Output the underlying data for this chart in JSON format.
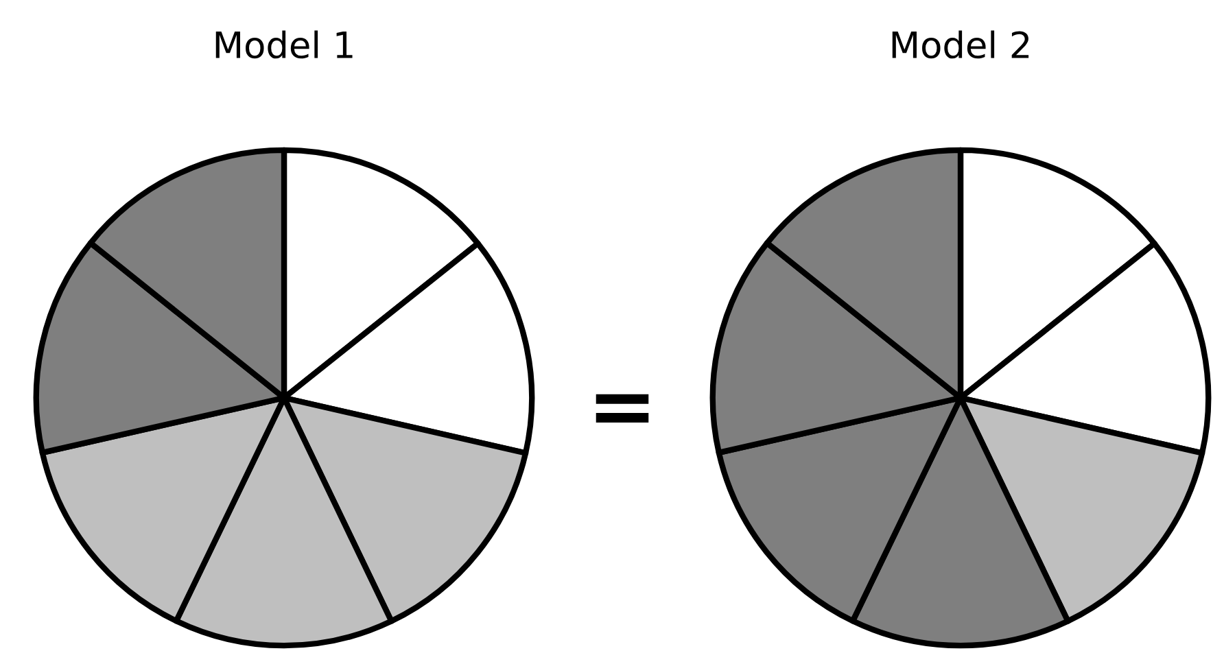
{
  "chart_data": [
    {
      "type": "pie",
      "title": "Model 1",
      "categories": [
        null,
        null,
        null,
        null,
        null,
        null,
        null
      ],
      "values": [
        14.29,
        14.29,
        14.29,
        14.29,
        14.29,
        14.29,
        14.26
      ],
      "colors": [
        "#ffffff",
        "#ffffff",
        "#bfbfbf",
        "#bfbfbf",
        "#bfbfbf",
        "#7f7f7f",
        "#7f7f7f"
      ],
      "annotations": [
        "="
      ]
    },
    {
      "type": "pie",
      "title": "Model 2",
      "categories": [
        null,
        null,
        null,
        null,
        null,
        null,
        null
      ],
      "values": [
        14.29,
        14.29,
        14.29,
        14.29,
        14.29,
        14.29,
        14.26
      ],
      "colors": [
        "#ffffff",
        "#ffffff",
        "#bfbfbf",
        "#7f7f7f",
        "#7f7f7f",
        "#7f7f7f",
        "#7f7f7f"
      ]
    }
  ]
}
